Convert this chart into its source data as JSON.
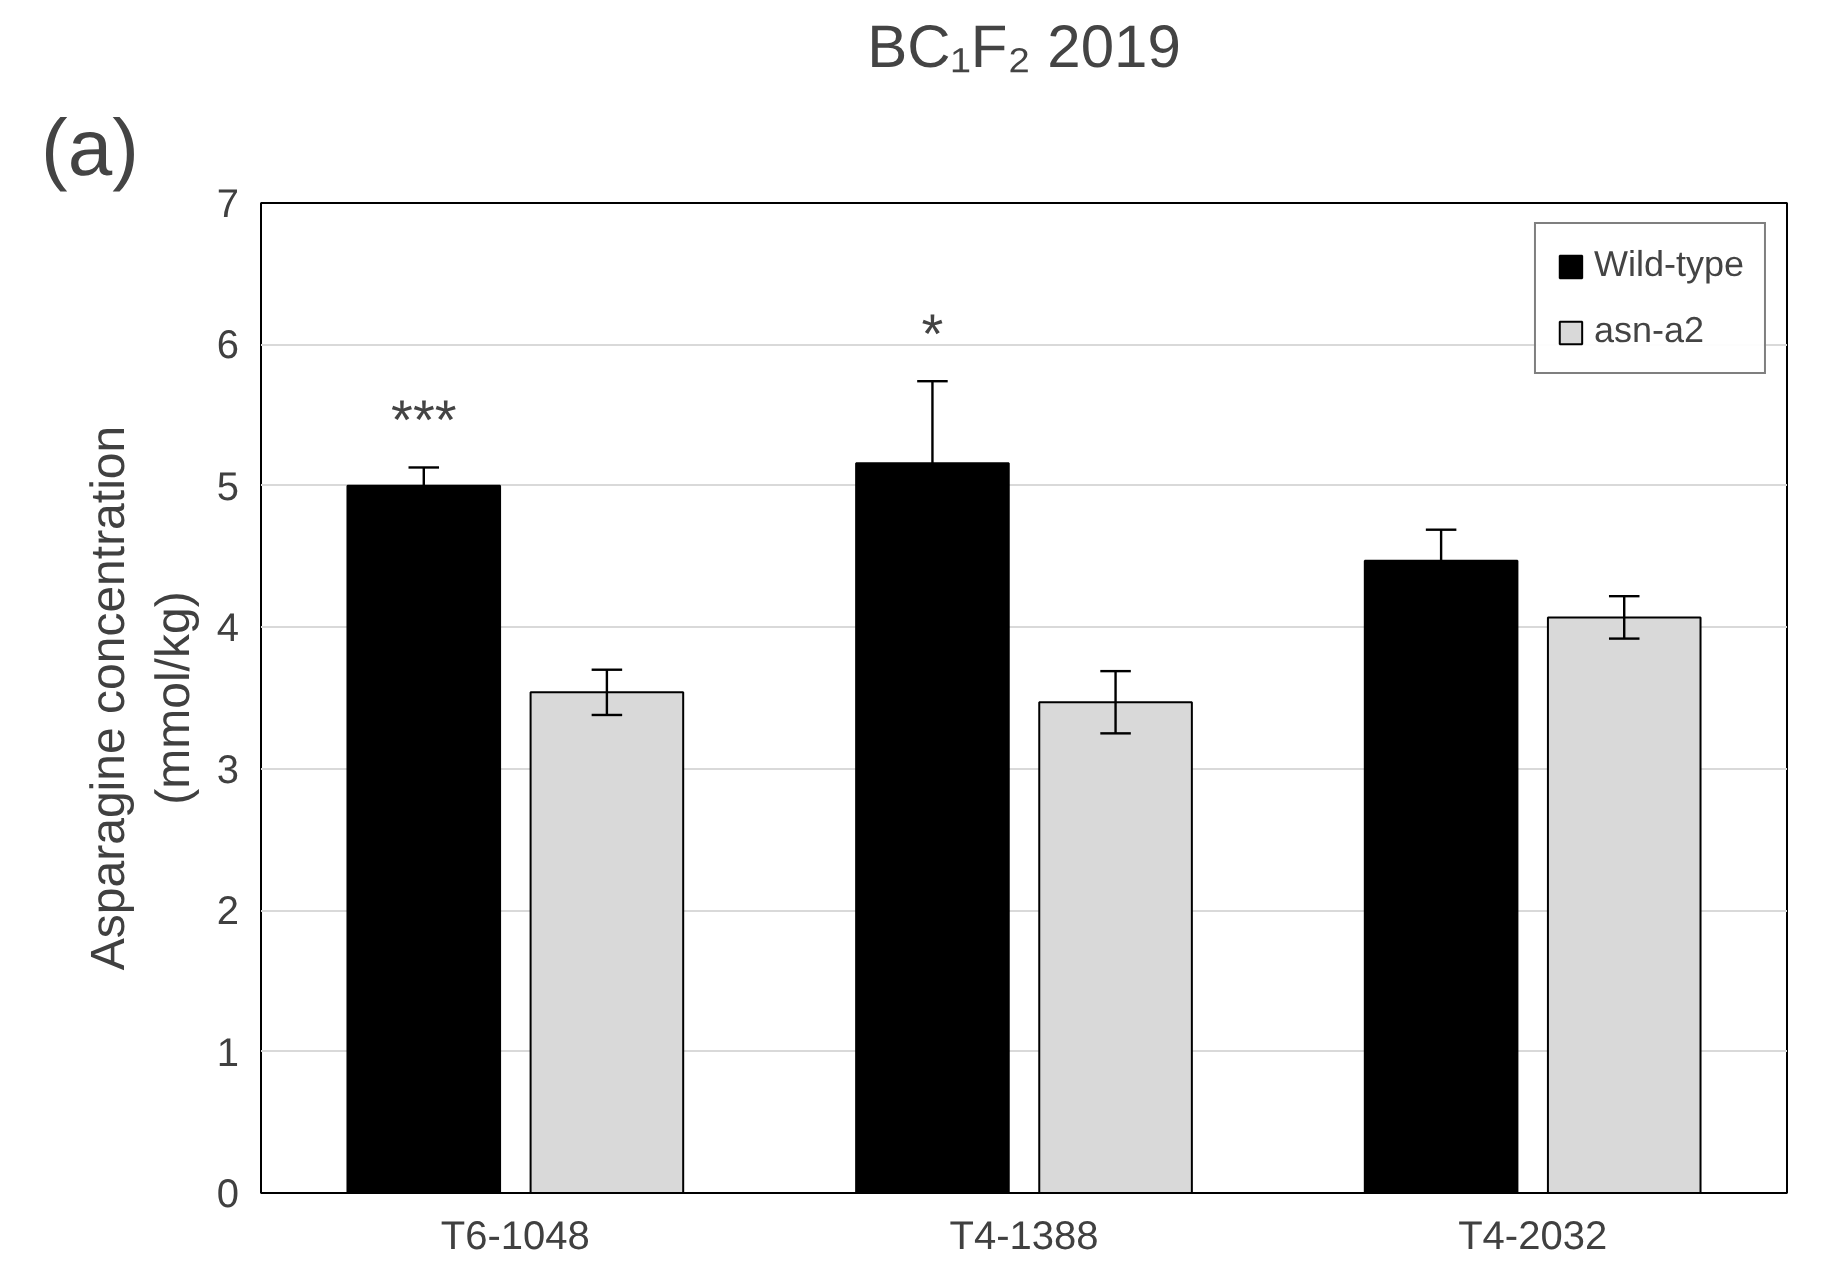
{
  "chart_data": {
    "type": "bar",
    "title": "BC₁F₂ 2019",
    "ylabel": "Asparagine concentration\n(mmol/kg)",
    "categories": [
      "T6-1048",
      "T4-1388",
      "T4-2032"
    ],
    "series": [
      {
        "name": "Wild-type",
        "color": "#000000",
        "values": [
          5.0,
          5.16,
          4.47
        ],
        "errors": [
          0.13,
          0.58,
          0.22
        ]
      },
      {
        "name": "asn-a2",
        "color": "#d9d9d9",
        "values": [
          3.54,
          3.47,
          4.07
        ],
        "errors": [
          0.16,
          0.22,
          0.15
        ]
      }
    ],
    "ylim": [
      0,
      7
    ],
    "yticks": [
      0,
      1,
      2,
      3,
      4,
      5,
      6,
      7
    ],
    "grid": "y",
    "legend": "top right",
    "annotations": [
      "(a)",
      "***",
      "*"
    ]
  }
}
